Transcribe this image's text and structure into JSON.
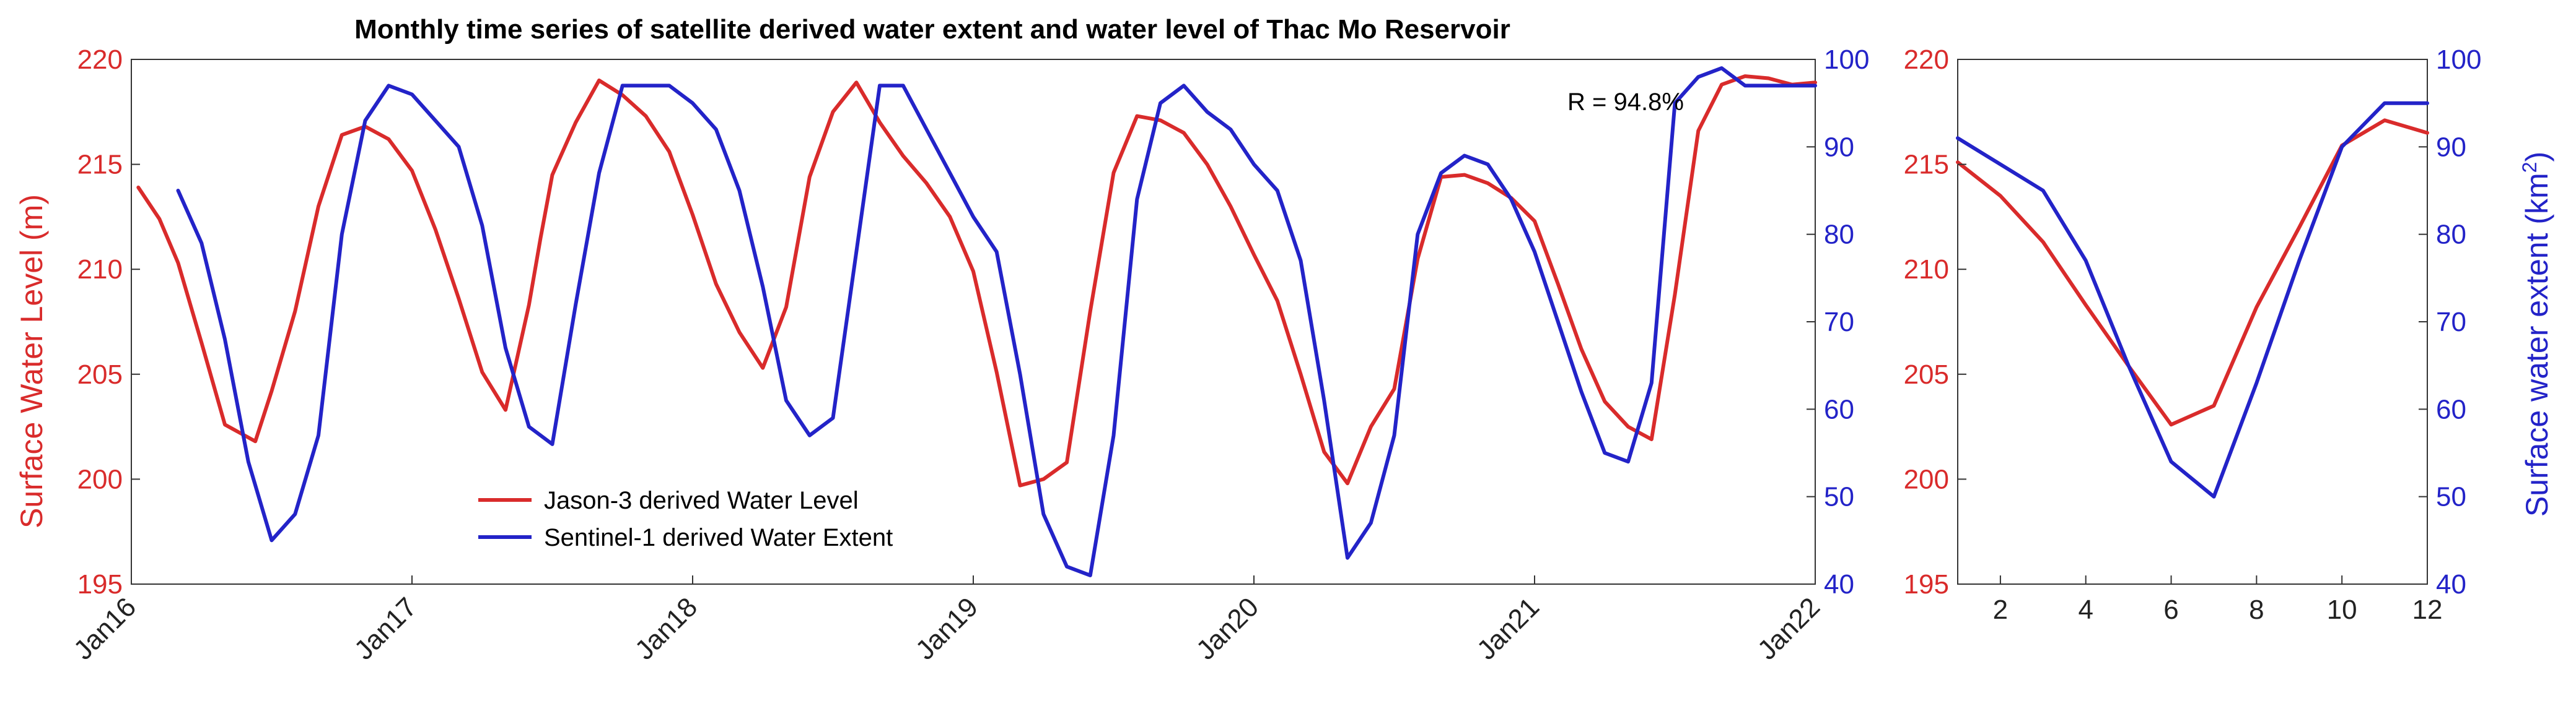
{
  "colors": {
    "level": "#d92b2b",
    "extent": "#2323c8",
    "axis": "#333333"
  },
  "chart_data": [
    {
      "type": "line",
      "title": "Monthly time series of satellite derived water extent and water level of Thac Mo Reservoir",
      "xlabel": "",
      "ylabel_left": "Surface Water Level (m)",
      "ylabel_right": "",
      "x_range": [
        0,
        72
      ],
      "x_ticks": [
        0,
        12,
        24,
        36,
        48,
        60,
        72
      ],
      "x_tick_labels": [
        "Jan16",
        "Jan17",
        "Jan18",
        "Jan19",
        "Jan20",
        "Jan21",
        "Jan22"
      ],
      "ylim_left": [
        195,
        220
      ],
      "yticks_left": [
        "195",
        "200",
        "205",
        "210",
        "215",
        "220"
      ],
      "ylim_right": [
        40,
        100
      ],
      "yticks_right": [
        "40",
        "50",
        "60",
        "70",
        "80",
        "90",
        "100"
      ],
      "annotation": "R = 94.8%",
      "legend": [
        "Jason-3 derived Water Level",
        "Sentinel-1 derived Water Extent"
      ],
      "series": [
        {
          "name": "Jason-3 derived Water Level",
          "axis": "left",
          "x": [
            0.3,
            1.2,
            2,
            3,
            4,
            5.3,
            6,
            7,
            8,
            9,
            10,
            11,
            12,
            13,
            14,
            15,
            16,
            17,
            17.5,
            18,
            19,
            20,
            21,
            22,
            23,
            24,
            25,
            26,
            27,
            28,
            29,
            30,
            31,
            32,
            33,
            34,
            35,
            36,
            37,
            38,
            39,
            40,
            41,
            42,
            43,
            44,
            45,
            46,
            47,
            48,
            49,
            50,
            51,
            52,
            53,
            54,
            55,
            56,
            57,
            58,
            59,
            60,
            61,
            62,
            63,
            64,
            65,
            66,
            67,
            68,
            69,
            70,
            71,
            72
          ],
          "values": [
            213.9,
            212.4,
            210.3,
            206.5,
            202.6,
            201.8,
            204.2,
            208.0,
            213.0,
            216.4,
            216.8,
            216.2,
            214.7,
            211.9,
            208.6,
            205.1,
            203.3,
            208.3,
            211.5,
            214.5,
            217.0,
            219.0,
            218.3,
            217.3,
            215.6,
            212.6,
            209.3,
            207.0,
            205.3,
            208.2,
            214.4,
            217.5,
            218.9,
            217.0,
            215.4,
            214.1,
            212.5,
            209.9,
            205.1,
            199.7,
            200.0,
            200.8,
            208.0,
            214.6,
            217.3,
            217.1,
            216.5,
            215.0,
            213.0,
            210.7,
            208.5,
            205.0,
            201.3,
            199.8,
            202.5,
            204.3,
            210.5,
            214.4,
            214.5,
            214.1,
            213.4,
            212.3,
            209.3,
            206.2,
            203.7,
            202.5,
            201.9,
            208.8,
            216.6,
            218.8,
            219.2,
            219.1,
            218.8,
            218.9
          ],
          "_note": "x in months since Jan 2016"
        },
        {
          "name": "Sentinel-1 derived Water Extent",
          "axis": "right",
          "x": [
            2,
            3,
            4,
            5,
            6,
            7,
            8,
            9,
            10,
            11,
            12,
            13,
            14,
            15,
            16,
            17,
            18,
            19,
            20,
            21,
            22,
            23,
            24,
            25,
            26,
            27,
            28,
            29,
            30,
            31,
            32,
            33,
            34,
            35,
            36,
            37,
            38,
            39,
            40,
            41,
            42,
            43,
            44,
            45,
            46,
            47,
            48,
            49,
            50,
            51,
            52,
            53,
            54,
            55,
            56,
            57,
            58,
            59,
            60,
            61,
            62,
            63,
            64,
            65,
            66,
            67,
            68,
            69,
            70,
            71,
            72
          ],
          "values": [
            85,
            79,
            68,
            54,
            45,
            48,
            57,
            80,
            93,
            97,
            96,
            93,
            90,
            81,
            67,
            58,
            56,
            72,
            87,
            97,
            97,
            97,
            95,
            92,
            85,
            74,
            61,
            57,
            59,
            78,
            97,
            97,
            92,
            87,
            82,
            78,
            64,
            48,
            42,
            41,
            57,
            84,
            95,
            97,
            94,
            92,
            88,
            85,
            77,
            61,
            43,
            47,
            57,
            80,
            87,
            89,
            88,
            84,
            78,
            70,
            62,
            55,
            54,
            63,
            95,
            98,
            99,
            97,
            97,
            97,
            97
          ]
        }
      ]
    },
    {
      "type": "line",
      "title": "",
      "xlabel": "",
      "ylabel_left": "",
      "ylabel_right": "Surface water extent (km",
      "ylabel_right_sup": "2",
      "ylabel_right_tail": ")",
      "x_range": [
        1,
        12
      ],
      "x_ticks": [
        "2",
        "4",
        "6",
        "8",
        "10",
        "12"
      ],
      "ylim_left": [
        195,
        220
      ],
      "yticks_left": [
        "195",
        "200",
        "205",
        "210",
        "215",
        "220"
      ],
      "ylim_right": [
        40,
        100
      ],
      "yticks_right": [
        "40",
        "50",
        "60",
        "70",
        "80",
        "90",
        "100"
      ],
      "series": [
        {
          "name": "Jason-3 derived Water Level",
          "axis": "left",
          "x": [
            1,
            2,
            3,
            4,
            5,
            6,
            7,
            8,
            9,
            10,
            11,
            12
          ],
          "values": [
            215.1,
            213.5,
            211.3,
            208.3,
            205.4,
            202.6,
            203.5,
            208.2,
            212.0,
            215.9,
            217.1,
            216.5
          ]
        },
        {
          "name": "Sentinel-1 derived Water Extent",
          "axis": "right",
          "x": [
            1,
            2,
            3,
            4,
            5,
            6,
            7,
            8,
            9,
            10,
            11,
            12
          ],
          "values": [
            91,
            88,
            85,
            77,
            65,
            54,
            50,
            63,
            77,
            90,
            95,
            95
          ]
        }
      ]
    }
  ]
}
